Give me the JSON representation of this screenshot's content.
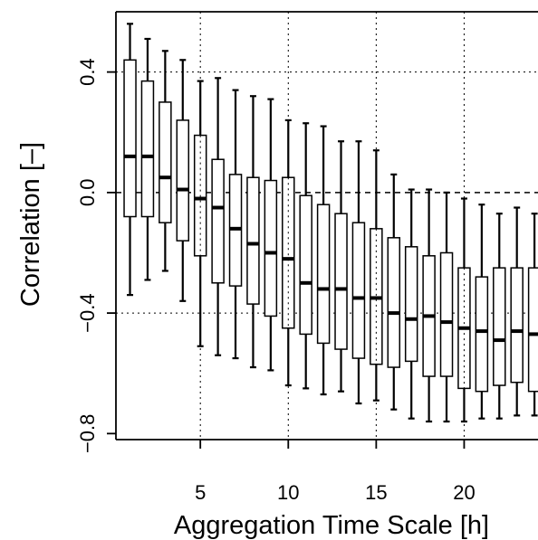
{
  "chart_data": {
    "type": "boxplot",
    "xlabel": "Aggregation Time Scale [h]",
    "ylabel": "Correlation [–]",
    "xlim": [
      0.2,
      24.2
    ],
    "ylim": [
      -0.82,
      0.6
    ],
    "x_ticks": [
      5,
      10,
      15,
      20
    ],
    "x_tick_labels": [
      "5",
      "10",
      "15",
      "20"
    ],
    "y_ticks": [
      -0.8,
      -0.4,
      0.0,
      0.4
    ],
    "y_tick_labels": [
      "−0.8",
      "−0.4",
      "0.0",
      "0.4"
    ],
    "grid": {
      "vertical": [
        5,
        10,
        15,
        20
      ],
      "horizontal": [
        -0.4,
        0.4
      ],
      "zero_line": 0.0
    },
    "boxes": [
      {
        "x": 1,
        "lower_whisker": -0.34,
        "q1": -0.08,
        "median": 0.12,
        "q3": 0.44,
        "upper_whisker": 0.56
      },
      {
        "x": 2,
        "lower_whisker": -0.29,
        "q1": -0.08,
        "median": 0.12,
        "q3": 0.37,
        "upper_whisker": 0.51
      },
      {
        "x": 3,
        "lower_whisker": -0.26,
        "q1": -0.1,
        "median": 0.05,
        "q3": 0.3,
        "upper_whisker": 0.47
      },
      {
        "x": 4,
        "lower_whisker": -0.36,
        "q1": -0.16,
        "median": 0.01,
        "q3": 0.24,
        "upper_whisker": 0.44
      },
      {
        "x": 5,
        "lower_whisker": -0.51,
        "q1": -0.21,
        "median": -0.02,
        "q3": 0.19,
        "upper_whisker": 0.37
      },
      {
        "x": 6,
        "lower_whisker": -0.54,
        "q1": -0.3,
        "median": -0.05,
        "q3": 0.11,
        "upper_whisker": 0.38
      },
      {
        "x": 7,
        "lower_whisker": -0.55,
        "q1": -0.31,
        "median": -0.12,
        "q3": 0.06,
        "upper_whisker": 0.34
      },
      {
        "x": 8,
        "lower_whisker": -0.58,
        "q1": -0.37,
        "median": -0.17,
        "q3": 0.05,
        "upper_whisker": 0.32
      },
      {
        "x": 9,
        "lower_whisker": -0.59,
        "q1": -0.41,
        "median": -0.2,
        "q3": 0.04,
        "upper_whisker": 0.31
      },
      {
        "x": 10,
        "lower_whisker": -0.64,
        "q1": -0.45,
        "median": -0.22,
        "q3": 0.05,
        "upper_whisker": 0.24
      },
      {
        "x": 11,
        "lower_whisker": -0.65,
        "q1": -0.47,
        "median": -0.3,
        "q3": -0.01,
        "upper_whisker": 0.23
      },
      {
        "x": 12,
        "lower_whisker": -0.67,
        "q1": -0.5,
        "median": -0.32,
        "q3": -0.04,
        "upper_whisker": 0.22
      },
      {
        "x": 13,
        "lower_whisker": -0.66,
        "q1": -0.52,
        "median": -0.32,
        "q3": -0.07,
        "upper_whisker": 0.17
      },
      {
        "x": 14,
        "lower_whisker": -0.7,
        "q1": -0.55,
        "median": -0.35,
        "q3": -0.1,
        "upper_whisker": 0.17
      },
      {
        "x": 15,
        "lower_whisker": -0.69,
        "q1": -0.57,
        "median": -0.35,
        "q3": -0.12,
        "upper_whisker": 0.14
      },
      {
        "x": 16,
        "lower_whisker": -0.72,
        "q1": -0.58,
        "median": -0.4,
        "q3": -0.15,
        "upper_whisker": 0.06
      },
      {
        "x": 17,
        "lower_whisker": -0.75,
        "q1": -0.56,
        "median": -0.42,
        "q3": -0.18,
        "upper_whisker": 0.01
      },
      {
        "x": 18,
        "lower_whisker": -0.76,
        "q1": -0.61,
        "median": -0.41,
        "q3": -0.21,
        "upper_whisker": 0.01
      },
      {
        "x": 19,
        "lower_whisker": -0.76,
        "q1": -0.61,
        "median": -0.43,
        "q3": -0.2,
        "upper_whisker": 0.0
      },
      {
        "x": 20,
        "lower_whisker": -0.76,
        "q1": -0.65,
        "median": -0.45,
        "q3": -0.25,
        "upper_whisker": -0.02
      },
      {
        "x": 21,
        "lower_whisker": -0.75,
        "q1": -0.66,
        "median": -0.46,
        "q3": -0.28,
        "upper_whisker": -0.04
      },
      {
        "x": 22,
        "lower_whisker": -0.75,
        "q1": -0.64,
        "median": -0.49,
        "q3": -0.25,
        "upper_whisker": -0.07
      },
      {
        "x": 23,
        "lower_whisker": -0.74,
        "q1": -0.63,
        "median": -0.46,
        "q3": -0.25,
        "upper_whisker": -0.05
      },
      {
        "x": 24,
        "lower_whisker": -0.74,
        "q1": -0.66,
        "median": -0.47,
        "q3": -0.25,
        "upper_whisker": -0.07
      }
    ]
  }
}
